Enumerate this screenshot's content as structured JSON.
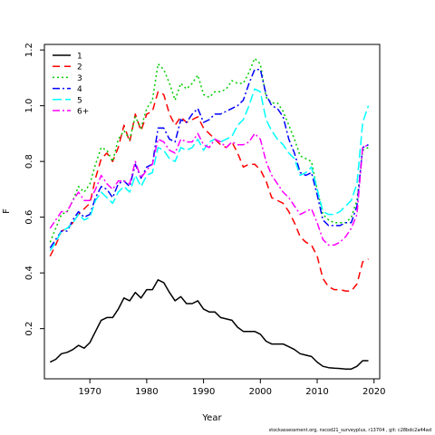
{
  "chart_data": {
    "type": "line",
    "title": "",
    "xlabel": "Year",
    "ylabel": "F",
    "xlim": [
      1962,
      2021
    ],
    "ylim": [
      0.02,
      1.22
    ],
    "xticks": [
      1970,
      1980,
      1990,
      2000,
      2010,
      2020
    ],
    "yticks": [
      0.2,
      0.4,
      0.6,
      0.8,
      1.0,
      1.2
    ],
    "ytick_labels": [
      "0.2",
      "0.4",
      "0.6",
      "0.8",
      "1.0",
      "1.2"
    ],
    "legend_position": "top-left",
    "grid": false,
    "x": [
      1963,
      1964,
      1965,
      1966,
      1967,
      1968,
      1969,
      1970,
      1971,
      1972,
      1973,
      1974,
      1975,
      1976,
      1977,
      1978,
      1979,
      1980,
      1981,
      1982,
      1983,
      1984,
      1985,
      1986,
      1987,
      1988,
      1989,
      1990,
      1991,
      1992,
      1993,
      1994,
      1995,
      1996,
      1997,
      1998,
      1999,
      2000,
      2001,
      2002,
      2003,
      2004,
      2005,
      2006,
      2007,
      2008,
      2009,
      2010,
      2011,
      2012,
      2013,
      2014,
      2015,
      2016,
      2017,
      2018,
      2019
    ],
    "series": [
      {
        "name": "1",
        "color": "#000000",
        "dash": "",
        "values": [
          0.08,
          0.09,
          0.11,
          0.115,
          0.125,
          0.14,
          0.13,
          0.15,
          0.19,
          0.23,
          0.24,
          0.24,
          0.27,
          0.31,
          0.3,
          0.33,
          0.31,
          0.34,
          0.34,
          0.375,
          0.365,
          0.33,
          0.3,
          0.315,
          0.29,
          0.29,
          0.3,
          0.27,
          0.26,
          0.26,
          0.24,
          0.235,
          0.23,
          0.205,
          0.19,
          0.19,
          0.19,
          0.18,
          0.155,
          0.145,
          0.145,
          0.145,
          0.135,
          0.125,
          0.11,
          0.105,
          0.1,
          0.08,
          0.065,
          0.06,
          0.058,
          0.057,
          0.055,
          0.055,
          0.065,
          0.085,
          0.085
        ]
      },
      {
        "name": "2",
        "color": "#ff0000",
        "dash": "8,5",
        "values": [
          0.46,
          0.5,
          0.55,
          0.56,
          0.58,
          0.61,
          0.63,
          0.65,
          0.74,
          0.81,
          0.83,
          0.8,
          0.85,
          0.93,
          0.87,
          0.97,
          0.91,
          0.97,
          0.98,
          1.05,
          1.04,
          0.97,
          0.93,
          0.96,
          0.94,
          0.95,
          0.96,
          0.92,
          0.9,
          0.88,
          0.86,
          0.85,
          0.87,
          0.83,
          0.78,
          0.79,
          0.79,
          0.77,
          0.73,
          0.67,
          0.66,
          0.65,
          0.62,
          0.58,
          0.53,
          0.51,
          0.5,
          0.46,
          0.38,
          0.35,
          0.34,
          0.34,
          0.335,
          0.335,
          0.36,
          0.44,
          0.45
        ]
      },
      {
        "name": "3",
        "color": "#00cd00",
        "dash": "2,3",
        "values": [
          0.51,
          0.56,
          0.61,
          0.62,
          0.66,
          0.71,
          0.69,
          0.72,
          0.79,
          0.85,
          0.84,
          0.8,
          0.88,
          0.91,
          0.88,
          0.96,
          0.92,
          0.99,
          1.02,
          1.15,
          1.13,
          1.08,
          1.02,
          1.08,
          1.06,
          1.08,
          1.11,
          1.04,
          1.03,
          1.05,
          1.05,
          1.06,
          1.09,
          1.08,
          1.08,
          1.12,
          1.17,
          1.15,
          1.03,
          1.01,
          1.01,
          0.98,
          0.93,
          0.88,
          0.82,
          0.81,
          0.8,
          0.7,
          0.61,
          0.59,
          0.58,
          0.58,
          0.58,
          0.6,
          0.66,
          0.84,
          0.85
        ]
      },
      {
        "name": "4",
        "color": "#0000ff",
        "dash": "8,3,2,3",
        "values": [
          0.49,
          0.52,
          0.55,
          0.55,
          0.59,
          0.62,
          0.6,
          0.61,
          0.67,
          0.71,
          0.7,
          0.67,
          0.72,
          0.73,
          0.71,
          0.79,
          0.74,
          0.78,
          0.79,
          0.92,
          0.92,
          0.88,
          0.87,
          0.95,
          0.94,
          0.97,
          0.99,
          0.94,
          0.95,
          0.97,
          0.97,
          0.98,
          0.99,
          1.0,
          1.02,
          1.08,
          1.13,
          1.13,
          1.04,
          1.0,
          0.99,
          0.96,
          0.88,
          0.83,
          0.76,
          0.75,
          0.76,
          0.68,
          0.59,
          0.57,
          0.57,
          0.57,
          0.58,
          0.58,
          0.64,
          0.85,
          0.86
        ]
      },
      {
        "name": "5",
        "color": "#00ffff",
        "dash": "10,4",
        "values": [
          0.48,
          0.51,
          0.55,
          0.56,
          0.58,
          0.61,
          0.59,
          0.6,
          0.66,
          0.69,
          0.67,
          0.65,
          0.69,
          0.71,
          0.69,
          0.75,
          0.71,
          0.75,
          0.76,
          0.85,
          0.84,
          0.81,
          0.8,
          0.85,
          0.84,
          0.85,
          0.88,
          0.84,
          0.87,
          0.88,
          0.87,
          0.88,
          0.89,
          0.93,
          0.95,
          1.0,
          1.06,
          1.05,
          0.95,
          0.91,
          0.88,
          0.86,
          0.83,
          0.81,
          0.75,
          0.76,
          0.78,
          0.7,
          0.62,
          0.61,
          0.61,
          0.62,
          0.64,
          0.66,
          0.72,
          0.94,
          1.0
        ]
      },
      {
        "name": "6+",
        "color": "#ff00ff",
        "dash": "8,3,2,3",
        "values": [
          0.56,
          0.59,
          0.62,
          0.62,
          0.66,
          0.69,
          0.66,
          0.66,
          0.7,
          0.75,
          0.72,
          0.7,
          0.73,
          0.73,
          0.72,
          0.8,
          0.74,
          0.77,
          0.79,
          0.88,
          0.87,
          0.84,
          0.83,
          0.88,
          0.87,
          0.87,
          0.9,
          0.86,
          0.85,
          0.88,
          0.87,
          0.85,
          0.87,
          0.86,
          0.86,
          0.87,
          0.9,
          0.88,
          0.8,
          0.75,
          0.72,
          0.69,
          0.67,
          0.64,
          0.61,
          0.62,
          0.63,
          0.58,
          0.52,
          0.5,
          0.5,
          0.51,
          0.53,
          0.56,
          0.61,
          0.85,
          0.86
        ]
      }
    ]
  },
  "footer": "stockassessment.org,  nscod21_surveyplus,  r13704 ,  git:  c28bdc2a44ad"
}
